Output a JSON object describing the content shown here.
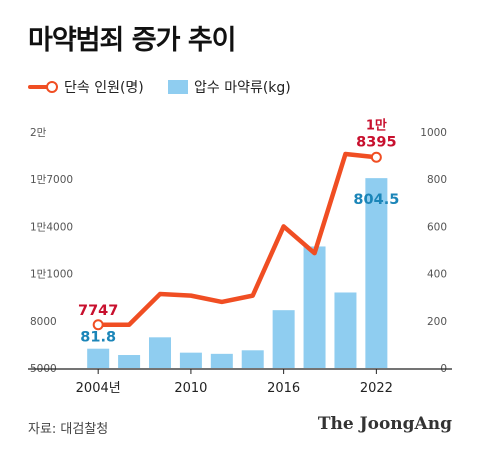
{
  "title": "마약범죄 증가 추이",
  "legend": {
    "line_label": "단속 인원(명)",
    "bar_label": "압수 마약류(kg)"
  },
  "source": "자료: 대검찰청",
  "brand": "The JoongAng",
  "chart_data": {
    "type": "bar+line",
    "x": [
      2004,
      2005,
      2006,
      2007,
      2008,
      2009,
      2010,
      2011,
      2012,
      2013,
      2014,
      2015,
      2016,
      2017,
      2018,
      2019,
      2020,
      2021,
      2022
    ],
    "x_ticks": [
      {
        "value": 2004,
        "label": "2004년"
      },
      {
        "value": 2010,
        "label": "2010"
      },
      {
        "value": 2016,
        "label": "2016"
      },
      {
        "value": 2022,
        "label": "2022"
      }
    ],
    "left_axis": {
      "ticks": [
        "5000",
        "8000",
        "1만1000",
        "1만4000",
        "1만7000",
        "2만"
      ],
      "tick_values": [
        5000,
        8000,
        11000,
        14000,
        17000,
        20000
      ],
      "range": [
        5000,
        20000
      ]
    },
    "right_axis": {
      "ticks": [
        "0",
        "200",
        "400",
        "600",
        "800",
        "1000"
      ],
      "tick_values": [
        0,
        200,
        400,
        600,
        800,
        1000
      ],
      "range": [
        0,
        1000
      ]
    },
    "bars": {
      "name": "압수 마약류(kg)",
      "color": "#8fcdf0",
      "x": [
        2004,
        2006,
        2008,
        2010,
        2012,
        2014,
        2016,
        2018,
        2020,
        2022
      ],
      "values": [
        81.8,
        55,
        130,
        65,
        60,
        75,
        245,
        515,
        320,
        804.5
      ]
    },
    "line": {
      "name": "단속 인원(명)",
      "color": "#f04e23",
      "x": [
        2004,
        2006,
        2008,
        2010,
        2012,
        2014,
        2016,
        2018,
        2020,
        2022
      ],
      "values": [
        7747,
        7750,
        9700,
        9600,
        9200,
        9600,
        14000,
        12300,
        18600,
        18395
      ]
    },
    "annotations": [
      {
        "text": "7747",
        "x": 2004,
        "series": "line",
        "color": "#c8102e"
      },
      {
        "text": "81.8",
        "x": 2004,
        "series": "bar",
        "color": "#1b85b8"
      },
      {
        "text": "1만",
        "x": 2022,
        "series": "line",
        "color": "#c8102e",
        "line": 1
      },
      {
        "text": "8395",
        "x": 2022,
        "series": "line",
        "color": "#c8102e",
        "line": 2
      },
      {
        "text": "804.5",
        "x": 2022,
        "series": "bar",
        "color": "#1b85b8"
      }
    ]
  }
}
